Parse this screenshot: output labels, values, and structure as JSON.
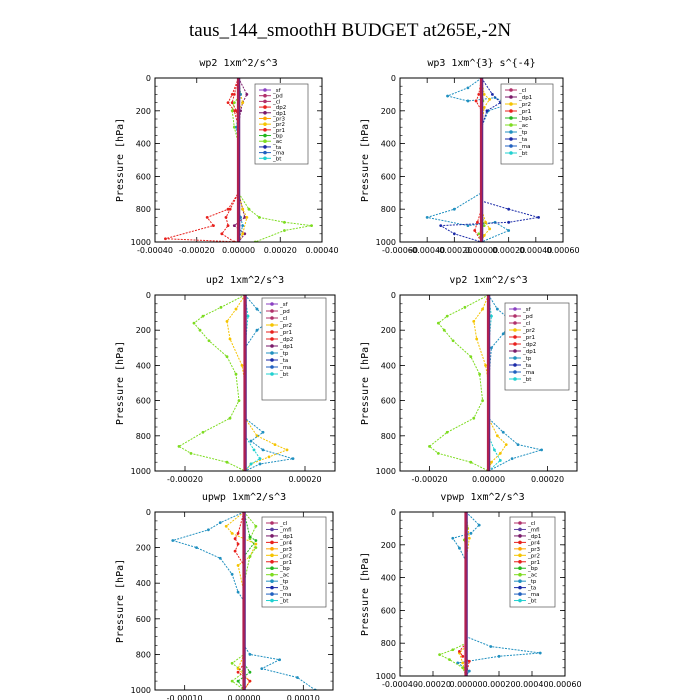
{
  "figure_title": "taus_144_smoothH  BUDGET at265E,-2N",
  "colors": {
    "sf": "#8a3fc1",
    "pd": "#b0306a",
    "cl": "#b0306a",
    "mfl": "#5a3fa0",
    "dp1": "#7a1a6a",
    "dp2": "#e8201c",
    "pr1": "#e8201c",
    "pr2": "#f5c400",
    "pr3": "#ffa500",
    "pr4": "#e8201c",
    "bp": "#22b51e",
    "bp1": "#22b51e",
    "dp": "#e8201c",
    "ac": "#7ddc20",
    "tp": "#2090c0",
    "ta": "#1a2aa8",
    "ma": "#2060c0",
    "bt": "#20d0d0"
  },
  "chart_data": [
    {
      "type": "line",
      "title": "wp2   1xm^2/s^3",
      "ylabel": "Pressure  [hPa]",
      "xlim": [
        -0.0004,
        0.0004
      ],
      "ylim": [
        1000,
        0
      ],
      "xticks": [
        "-0.00040",
        "-0.00020",
        "0.00000",
        "0.00020",
        "0.00040"
      ],
      "yticks": [
        "0",
        "200",
        "400",
        "600",
        "800",
        "1000"
      ],
      "legend": [
        "_sf",
        "_pd",
        "_cl",
        "_dp2",
        "_dp1",
        "_pr3",
        "_pr2",
        "_pr1",
        "_bp",
        "_ac",
        "_ta",
        "_ma",
        "_bt"
      ],
      "legend_keys": [
        "sf",
        "pd",
        "cl",
        "dp2",
        "dp1",
        "pr3",
        "pr2",
        "pr1",
        "bp",
        "ac",
        "ta",
        "ma",
        "bt"
      ],
      "series": [
        {
          "key": "dp1",
          "x": [
            0,
            4e-05,
            2e-05,
            1e-05,
            0,
            0,
            0,
            2e-05,
            3e-05,
            -2e-05,
            3e-05,
            0
          ],
          "y": [
            0,
            100,
            150,
            200,
            300,
            500,
            700,
            800,
            850,
            900,
            950,
            1000
          ]
        },
        {
          "key": "dp2",
          "x": [
            0,
            -2e-05,
            -3e-05,
            -1e-05,
            0,
            0,
            0,
            -4e-05,
            -6e-05,
            -5e-05,
            -8e-05,
            -2e-05
          ],
          "y": [
            0,
            100,
            150,
            200,
            300,
            500,
            700,
            800,
            850,
            900,
            950,
            1000
          ]
        },
        {
          "key": "pr1",
          "x": [
            0,
            -3e-05,
            -5e-05,
            -2e-05,
            0,
            0,
            0,
            -5e-05,
            -0.00015,
            -0.00012,
            -0.00035,
            0
          ],
          "y": [
            0,
            100,
            150,
            200,
            300,
            500,
            700,
            800,
            850,
            900,
            980,
            1000
          ]
        },
        {
          "key": "pr2",
          "x": [
            0,
            1e-05,
            2e-05,
            0,
            0,
            0,
            2e-05,
            4e-05,
            2e-05,
            0
          ],
          "y": [
            0,
            100,
            150,
            200,
            400,
            700,
            800,
            850,
            950,
            1000
          ]
        },
        {
          "key": "ac",
          "x": [
            0,
            1e-05,
            -2e-05,
            -3e-05,
            -2e-05,
            0,
            0,
            5e-05,
            0.0001,
            0.00022,
            0.00035,
            0.00022,
            8e-05
          ],
          "y": [
            0,
            100,
            150,
            200,
            300,
            400,
            700,
            800,
            850,
            880,
            900,
            930,
            1000
          ]
        },
        {
          "key": "tp",
          "x": [
            0,
            1e-05,
            0,
            -1e-05,
            0,
            0,
            0,
            1e-05,
            2e-05,
            0
          ],
          "y": [
            0,
            100,
            200,
            300,
            400,
            700,
            800,
            850,
            900,
            1000
          ]
        },
        {
          "key": "sf",
          "x": [
            0,
            0,
            0,
            0,
            3e-06,
            0
          ],
          "y": [
            0,
            200,
            500,
            800,
            900,
            1000
          ]
        }
      ]
    },
    {
      "type": "line",
      "title": "wp3   1xm^{3} s^{-4}",
      "ylabel": "Pressure  [hPa]",
      "xlim": [
        -0.0006,
        0.0006
      ],
      "ylim": [
        1000,
        0
      ],
      "xticks": [
        "-0.00060",
        "-0.00040",
        "-0.00020",
        "0.00000",
        "0.00020",
        "0.00040",
        "0.00060"
      ],
      "yticks": [
        "0",
        "200",
        "400",
        "600",
        "800",
        "1000"
      ],
      "legend": [
        "_cl",
        "_dp1",
        "_pr2",
        "_pr1",
        "_bp1",
        "_ac",
        "_tp",
        "_ta",
        "_ma",
        "_bt"
      ],
      "legend_keys": [
        "cl",
        "dp1",
        "pr2",
        "pr1",
        "bp1",
        "ac",
        "tp",
        "ta",
        "ma",
        "bt"
      ],
      "series": [
        {
          "key": "tp",
          "x": [
            0,
            -0.0001,
            -0.00025,
            -0.0001,
            0.0001,
            0.0002,
            5e-05,
            0,
            0,
            0,
            -0.0002,
            -0.0004,
            -0.0001,
            0.0001,
            0.0002,
            0
          ],
          "y": [
            0,
            60,
            110,
            140,
            120,
            160,
            200,
            300,
            500,
            700,
            800,
            850,
            900,
            880,
            930,
            1000
          ]
        },
        {
          "key": "ta",
          "x": [
            0,
            8e-05,
            0.00014,
            4e-05,
            0,
            0,
            0,
            0.0002,
            0.00042,
            0.0002,
            -0.0003,
            -0.0002,
            0
          ],
          "y": [
            0,
            100,
            150,
            200,
            300,
            500,
            750,
            800,
            850,
            880,
            900,
            950,
            1000
          ]
        },
        {
          "key": "pr2",
          "x": [
            0,
            2e-05,
            6e-05,
            2e-05,
            0,
            0,
            3e-05,
            6e-05,
            2e-05,
            0
          ],
          "y": [
            0,
            100,
            130,
            180,
            300,
            800,
            880,
            920,
            960,
            1000
          ]
        },
        {
          "key": "pr1",
          "x": [
            0,
            -2e-05,
            -4e-05,
            0,
            0,
            -3e-05,
            -5e-05,
            0
          ],
          "y": [
            0,
            100,
            140,
            200,
            800,
            880,
            930,
            1000
          ]
        },
        {
          "key": "ac",
          "x": [
            0,
            1e-05,
            0,
            0,
            2e-05,
            -2e-05,
            0
          ],
          "y": [
            0,
            140,
            300,
            800,
            900,
            950,
            1000
          ]
        }
      ]
    },
    {
      "type": "line",
      "title": "up2   1xm^2/s^3",
      "ylabel": "Pressure  [hPa]",
      "xlim": [
        -0.0003,
        0.0003
      ],
      "ylim": [
        1000,
        0
      ],
      "xticks": [
        "-0.00020",
        "0.00000",
        "0.00020"
      ],
      "yticks": [
        "0",
        "200",
        "400",
        "600",
        "800",
        "1000"
      ],
      "legend": [
        "_sf",
        "_pd",
        "_cl",
        "_pr2",
        "_pr1",
        "_dp2",
        "_dp1",
        "_tp",
        "_ta",
        "_ma",
        "_bt"
      ],
      "legend_keys": [
        "sf",
        "pd",
        "cl",
        "pr2",
        "pr1",
        "dp2",
        "dp1",
        "tp",
        "ta",
        "ma",
        "bt"
      ],
      "series": [
        {
          "key": "ac",
          "x": [
            0,
            -8e-05,
            -0.00014,
            -0.00017,
            -0.00015,
            -0.00012,
            -6e-05,
            -3e-05,
            -2e-05,
            -5e-05,
            -0.00014,
            -0.00022,
            -0.00018,
            -6e-05,
            0
          ],
          "y": [
            0,
            70,
            120,
            160,
            200,
            260,
            350,
            450,
            600,
            700,
            780,
            860,
            900,
            950,
            1000
          ]
        },
        {
          "key": "pr2",
          "x": [
            0,
            -3e-05,
            -6e-05,
            -5e-05,
            -1e-05,
            0,
            0,
            4e-05,
            0.0001,
            0.00014,
            8e-05,
            2e-05,
            0
          ],
          "y": [
            0,
            80,
            150,
            250,
            400,
            500,
            700,
            800,
            850,
            880,
            920,
            960,
            1000
          ]
        },
        {
          "key": "tp",
          "x": [
            0,
            4e-05,
            8e-05,
            4e-05,
            0,
            0,
            0,
            6e-05,
            2e-05,
            6e-05,
            0.00016,
            5e-05,
            0
          ],
          "y": [
            0,
            80,
            150,
            200,
            300,
            500,
            700,
            780,
            830,
            880,
            930,
            960,
            1000
          ]
        },
        {
          "key": "bt",
          "x": [
            0,
            1e-05,
            0,
            0,
            3e-05,
            5e-05,
            2e-05,
            0
          ],
          "y": [
            0,
            120,
            300,
            800,
            880,
            930,
            960,
            1000
          ]
        }
      ]
    },
    {
      "type": "line",
      "title": "vp2   1xm^2/s^3",
      "ylabel": "Pressure  [hPa]",
      "xlim": [
        -0.0003,
        0.0003
      ],
      "ylim": [
        1000,
        0
      ],
      "xticks": [
        "-0.00020",
        "0.00000",
        "0.00020"
      ],
      "yticks": [
        "0",
        "200",
        "400",
        "600",
        "800",
        "1000"
      ],
      "legend": [
        "_sf",
        "_pd",
        "_cl",
        "_pr2",
        "_pr1",
        "_dp2",
        "_dp1",
        "_tp",
        "_ta",
        "_ma",
        "_bt"
      ],
      "legend_keys": [
        "sf",
        "pd",
        "cl",
        "pr2",
        "pr1",
        "dp2",
        "dp1",
        "tp",
        "ta",
        "ma",
        "bt"
      ],
      "series": [
        {
          "key": "ac",
          "x": [
            0,
            -8e-05,
            -0.00014,
            -0.00017,
            -0.00015,
            -0.00012,
            -6e-05,
            -3e-05,
            -2e-05,
            -5e-05,
            -0.00014,
            -0.0002,
            -0.00017,
            -6e-05,
            0
          ],
          "y": [
            0,
            70,
            120,
            160,
            200,
            260,
            350,
            450,
            600,
            700,
            780,
            860,
            900,
            950,
            1000
          ]
        },
        {
          "key": "pr2",
          "x": [
            0,
            -2e-05,
            -5e-05,
            -4e-05,
            -1e-05,
            0,
            0,
            3e-05,
            6e-05,
            4e-05,
            1e-05,
            0
          ],
          "y": [
            0,
            80,
            150,
            250,
            400,
            500,
            700,
            800,
            850,
            900,
            950,
            1000
          ]
        },
        {
          "key": "tp",
          "x": [
            0,
            3e-05,
            8e-05,
            5e-05,
            1e-05,
            0,
            0,
            5e-05,
            0.0001,
            0.00018,
            8e-05,
            0
          ],
          "y": [
            0,
            80,
            150,
            220,
            300,
            500,
            700,
            780,
            850,
            880,
            930,
            1000
          ]
        },
        {
          "key": "bt",
          "x": [
            0,
            1e-05,
            0,
            0,
            2e-05,
            4e-05,
            0
          ],
          "y": [
            0,
            120,
            300,
            800,
            880,
            940,
            1000
          ]
        }
      ]
    },
    {
      "type": "line",
      "title": "upwp   1xm^2/s^3",
      "ylabel": "Pressure  [hPa]",
      "xlim": [
        -0.00015,
        0.00015
      ],
      "ylim": [
        1000,
        0
      ],
      "xticks": [
        "-0.00010",
        "0.00000",
        "0.00010"
      ],
      "yticks": [
        "0",
        "200",
        "400",
        "600",
        "800",
        "1000"
      ],
      "legend": [
        "_cl",
        "_mfl",
        "_dp1",
        "_pr4",
        "_pr3",
        "_pr2",
        "_pr1",
        "_bp",
        "_ac",
        "_tp",
        "_ta",
        "_ma",
        "_bt"
      ],
      "legend_keys": [
        "cl",
        "mfl",
        "dp1",
        "pr4",
        "pr3",
        "pr2",
        "pr1",
        "bp",
        "ac",
        "tp",
        "ta",
        "ma",
        "bt"
      ],
      "series": [
        {
          "key": "tp",
          "x": [
            0,
            -4e-05,
            -6e-05,
            -0.00012,
            -8e-05,
            -4e-05,
            -2e-05,
            -1e-05,
            0,
            0,
            1e-05,
            6e-05,
            3e-05,
            9e-05,
            0.00012
          ],
          "y": [
            0,
            60,
            100,
            160,
            200,
            260,
            350,
            450,
            500,
            750,
            800,
            830,
            880,
            930,
            1000
          ]
        },
        {
          "key": "pr2",
          "x": [
            0,
            -3e-05,
            -2e-05,
            2e-05,
            1e-05,
            -1e-05,
            0,
            0,
            -1e-05,
            1e-05,
            0
          ],
          "y": [
            0,
            80,
            120,
            180,
            250,
            300,
            450,
            800,
            880,
            950,
            1000
          ]
        },
        {
          "key": "ac",
          "x": [
            0,
            2e-05,
            1e-05,
            2e-05,
            1e-05,
            0,
            0,
            -2e-05,
            0,
            -2e-05,
            0
          ],
          "y": [
            0,
            80,
            150,
            200,
            250,
            400,
            800,
            850,
            900,
            950,
            1000
          ]
        },
        {
          "key": "pr1",
          "x": [
            0,
            -1e-05,
            -1.5e-05,
            -1e-05,
            -1.5e-05,
            0,
            0,
            -1e-05,
            1e-05,
            0
          ],
          "y": [
            0,
            120,
            150,
            180,
            220,
            300,
            850,
            900,
            950,
            1000
          ]
        },
        {
          "key": "bp",
          "x": [
            0,
            1e-05,
            2e-05,
            0,
            0,
            1e-05,
            -1e-05,
            0
          ],
          "y": [
            0,
            140,
            160,
            250,
            850,
            900,
            950,
            1000
          ]
        }
      ]
    },
    {
      "type": "line",
      "title": "vpwp   1xm^2/s^3",
      "ylabel": "Pressure  [hPa]",
      "xlim": [
        -0.0004,
        0.0006
      ],
      "ylim": [
        1000,
        0
      ],
      "xticks": [
        "-0.00040",
        "-0.00020",
        "0.00000",
        "0.00020",
        "0.00040",
        "0.00060"
      ],
      "yticks": [
        "0",
        "200",
        "400",
        "600",
        "800",
        "1000"
      ],
      "legend": [
        "_cl",
        "_mfl",
        "_dp1",
        "_pr4",
        "_pr3",
        "_pr2",
        "_pr1",
        "_bp",
        "_ac",
        "_tp",
        "_ta",
        "_ma",
        "_bt"
      ],
      "legend_keys": [
        "cl",
        "mfl",
        "dp1",
        "pr4",
        "pr3",
        "pr2",
        "pr1",
        "bp",
        "ac",
        "tp",
        "ta",
        "ma",
        "bt"
      ],
      "series": [
        {
          "key": "tp",
          "x": [
            0,
            8e-05,
            3e-05,
            -8e-05,
            -4e-05,
            0,
            0,
            0,
            0.00015,
            0.00045,
            0.0002,
            -5e-05,
            2e-05,
            0
          ],
          "y": [
            0,
            80,
            130,
            160,
            220,
            300,
            500,
            760,
            820,
            860,
            880,
            920,
            970,
            1000
          ]
        },
        {
          "key": "ac",
          "x": [
            0,
            1e-05,
            -1e-05,
            0,
            0,
            -8e-05,
            -0.00016,
            -0.0001,
            -2e-05,
            0
          ],
          "y": [
            0,
            100,
            170,
            250,
            800,
            840,
            870,
            900,
            950,
            1000
          ]
        },
        {
          "key": "pr2",
          "x": [
            0,
            2e-05,
            0,
            0,
            -4e-05,
            -2e-05,
            0
          ],
          "y": [
            0,
            160,
            300,
            820,
            860,
            920,
            1000
          ]
        },
        {
          "key": "pr1",
          "x": [
            0,
            0,
            0,
            -4e-05,
            -2e-05,
            2e-05,
            0
          ],
          "y": [
            0,
            200,
            800,
            850,
            880,
            910,
            1000
          ]
        }
      ]
    }
  ]
}
